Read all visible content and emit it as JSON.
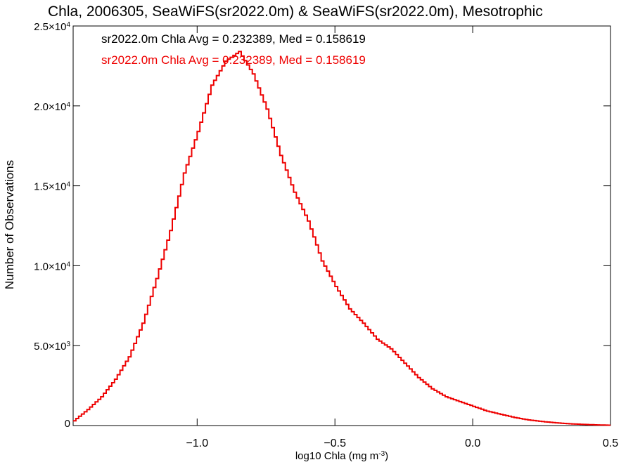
{
  "chart_data": {
    "type": "line",
    "title": "Chla, 2006305, SeaWiFS(sr2022.0m) & SeaWiFS(sr2022.0m), Mesotrophic",
    "xlabel": "log10 Chla (mg m",
    "xlabel_sup": "-3",
    "xlabel_end": ")",
    "ylabel": "Number of Observations",
    "xlim": [
      -1.45,
      0.5
    ],
    "ylim": [
      0,
      25000
    ],
    "grid": false,
    "x_ticks": [
      {
        "value": -1.0,
        "label": "−1.0"
      },
      {
        "value": -0.5,
        "label": "−0.5"
      },
      {
        "value": 0.0,
        "label": "0.0"
      },
      {
        "value": 0.5,
        "label": "0.5"
      }
    ],
    "y_ticks": [
      {
        "value": 0,
        "mantissa": "0",
        "exp": ""
      },
      {
        "value": 5000,
        "mantissa": "5.0×10",
        "exp": "3"
      },
      {
        "value": 10000,
        "mantissa": "1.0×10",
        "exp": "4"
      },
      {
        "value": 15000,
        "mantissa": "1.5×10",
        "exp": "4"
      },
      {
        "value": 20000,
        "mantissa": "2.0×10",
        "exp": "4"
      },
      {
        "value": 25000,
        "mantissa": "2.5×10",
        "exp": "4"
      }
    ],
    "annotations": [
      {
        "text": "sr2022.0m Chla Avg = 0.232389, Med = 0.158619",
        "color": "#000000"
      },
      {
        "text": "sr2022.0m Chla Avg = 0.232389, Med = 0.158619",
        "color": "#ee0000"
      }
    ],
    "series": [
      {
        "style": "step",
        "color_primary": "#ee0000",
        "color_secondary": "#000000",
        "x": [
          -1.45,
          -1.4,
          -1.35,
          -1.3,
          -1.25,
          -1.2,
          -1.15,
          -1.1,
          -1.05,
          -1.0,
          -0.95,
          -0.9,
          -0.85,
          -0.8,
          -0.75,
          -0.7,
          -0.65,
          -0.6,
          -0.55,
          -0.5,
          -0.45,
          -0.4,
          -0.35,
          -0.3,
          -0.25,
          -0.2,
          -0.15,
          -0.1,
          -0.05,
          0.0,
          0.05,
          0.1,
          0.15,
          0.2,
          0.25,
          0.3,
          0.35,
          0.4,
          0.45,
          0.5
        ],
        "y": [
          300,
          1000,
          1800,
          2900,
          4300,
          6400,
          9200,
          12200,
          15800,
          18400,
          21300,
          22800,
          23400,
          22000,
          19800,
          16900,
          14600,
          12800,
          10300,
          8700,
          7300,
          6400,
          5400,
          4800,
          3900,
          3000,
          2300,
          1800,
          1500,
          1200,
          900,
          700,
          500,
          350,
          250,
          170,
          110,
          70,
          40,
          20
        ]
      }
    ]
  }
}
